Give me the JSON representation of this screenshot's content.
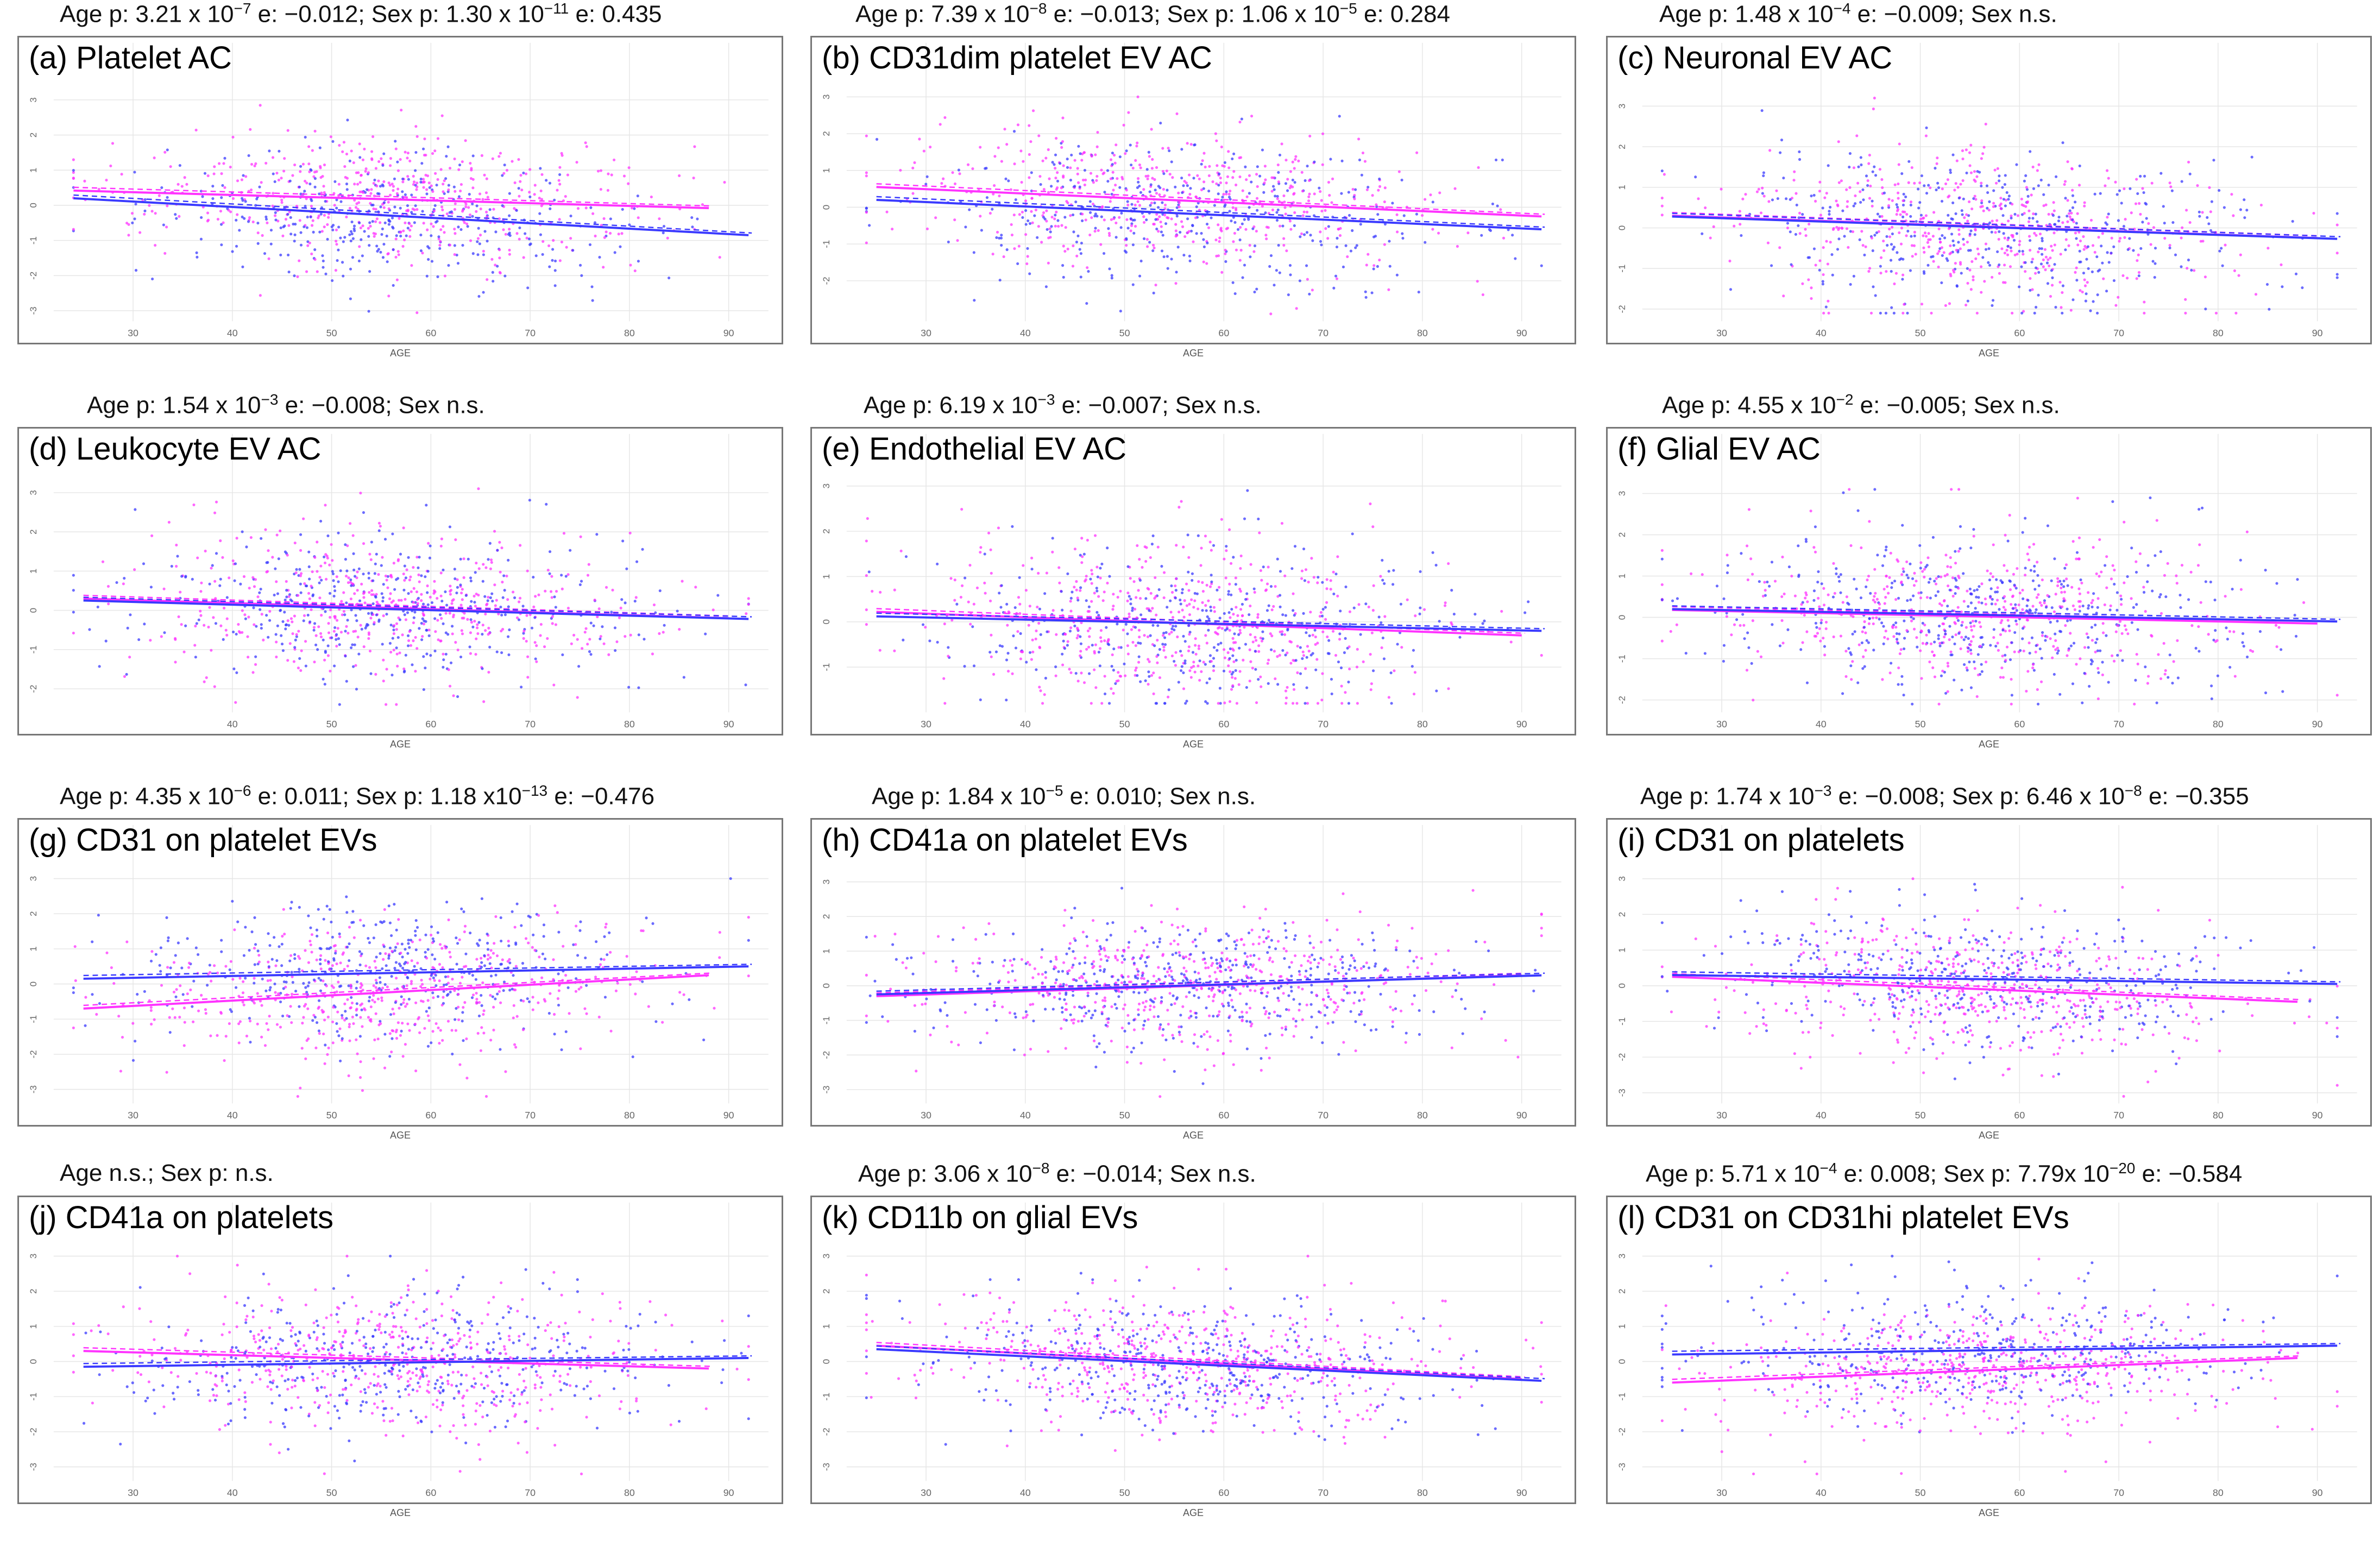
{
  "colors": {
    "female": "#ff33ff",
    "male": "#3a3aff",
    "grid": "#e6e6e6",
    "frame": "#777777"
  },
  "chart_data": [
    {
      "type": "scatter",
      "panel": "(a) Platelet AC",
      "header": "Age p: 3.21 x 10^-7 e: −0.012; Sex p: 1.30 x 10^-11 e: 0.435",
      "xlabel": "AGE",
      "xlim": [
        22,
        94
      ],
      "ylim": [
        -3.3,
        3.4
      ],
      "xticks": [
        30,
        40,
        50,
        60,
        70,
        80,
        90
      ],
      "yticks": [
        -3,
        -2,
        -1,
        0,
        1,
        2,
        3
      ],
      "lines": [
        {
          "sex": "female",
          "x": [
            24,
            88
          ],
          "y": [
            0.42,
            -0.08
          ]
        },
        {
          "sex": "male",
          "x": [
            24,
            92
          ],
          "y": [
            0.2,
            -0.85
          ]
        }
      ]
    },
    {
      "type": "scatter",
      "panel": "(b) CD31dim platelet EV AC",
      "header": "Age p: 7.39 x 10^-8 e: −0.013; Sex p: 1.06 x 10^-5 e: 0.284",
      "xlabel": "AGE",
      "xlim": [
        22,
        94
      ],
      "ylim": [
        -3.1,
        3.3
      ],
      "xticks": [
        30,
        40,
        50,
        60,
        70,
        80,
        90
      ],
      "yticks": [
        -2,
        -1,
        0,
        1,
        2,
        3
      ],
      "lines": [
        {
          "sex": "female",
          "x": [
            25,
            92
          ],
          "y": [
            0.55,
            -0.25
          ]
        },
        {
          "sex": "male",
          "x": [
            25,
            92
          ],
          "y": [
            0.2,
            -0.6
          ]
        }
      ]
    },
    {
      "type": "scatter",
      "panel": "(c) Neuronal EV AC",
      "header": "Age p: 1.48 x 10^-4 e: −0.009; Sex n.s.",
      "xlabel": "AGE",
      "xlim": [
        22,
        94
      ],
      "ylim": [
        -2.3,
        3.5
      ],
      "xticks": [
        30,
        40,
        50,
        60,
        70,
        80,
        90
      ],
      "yticks": [
        -2,
        -1,
        0,
        1,
        2,
        3
      ],
      "lines": [
        {
          "sex": "female",
          "x": [
            25,
            90
          ],
          "y": [
            0.3,
            -0.25
          ]
        },
        {
          "sex": "male",
          "x": [
            25,
            92
          ],
          "y": [
            0.28,
            -0.27
          ]
        }
      ]
    },
    {
      "type": "scatter",
      "panel": "(d) Leukocyte EV AC",
      "header": "Age p: 1.54 x 10^-3 e: −0.008; Sex n.s.",
      "xlabel": "AGE",
      "xlim": [
        22,
        94
      ],
      "ylim": [
        -2.6,
        3.4
      ],
      "xticks": [
        40,
        50,
        60,
        70,
        80,
        90
      ],
      "yticks": [
        -2,
        -1,
        0,
        1,
        2,
        3
      ],
      "lines": [
        {
          "sex": "female",
          "x": [
            25,
            90
          ],
          "y": [
            0.3,
            -0.2
          ]
        },
        {
          "sex": "male",
          "x": [
            25,
            92
          ],
          "y": [
            0.25,
            -0.22
          ]
        }
      ]
    },
    {
      "type": "scatter",
      "panel": "(e) Endothelial EV AC",
      "header": "Age p: 6.19 x 10^-3 e: −0.007; Sex n.s.",
      "xlabel": "AGE",
      "xlim": [
        22,
        94
      ],
      "ylim": [
        -2.0,
        3.2
      ],
      "xticks": [
        30,
        40,
        50,
        60,
        70,
        80,
        90
      ],
      "yticks": [
        -1,
        0,
        1,
        2,
        3
      ],
      "lines": [
        {
          "sex": "female",
          "x": [
            25,
            90
          ],
          "y": [
            0.22,
            -0.3
          ]
        },
        {
          "sex": "male",
          "x": [
            25,
            92
          ],
          "y": [
            0.12,
            -0.2
          ]
        }
      ]
    },
    {
      "type": "scatter",
      "panel": "(f) Glial EV AC",
      "header": "Age p: 4.55 x 10^-2 e: −0.005; Sex n.s.",
      "xlabel": "AGE",
      "xlim": [
        22,
        94
      ],
      "ylim": [
        -2.3,
        3.4
      ],
      "xticks": [
        30,
        40,
        50,
        60,
        70,
        80,
        90
      ],
      "yticks": [
        -2,
        -1,
        0,
        1,
        2,
        3
      ],
      "lines": [
        {
          "sex": "female",
          "x": [
            25,
            90
          ],
          "y": [
            0.18,
            -0.15
          ]
        },
        {
          "sex": "male",
          "x": [
            25,
            92
          ],
          "y": [
            0.2,
            -0.1
          ]
        }
      ]
    },
    {
      "type": "scatter",
      "panel": "(g) CD31 on platelet EVs",
      "header": "Age p: 4.35 x 10^-6 e: 0.011; Sex p: 1.18 x10^-13 e: −0.476",
      "xlabel": "AGE",
      "xlim": [
        22,
        94
      ],
      "ylim": [
        -3.4,
        3.3
      ],
      "xticks": [
        30,
        40,
        50,
        60,
        70,
        80,
        90
      ],
      "yticks": [
        -3,
        -2,
        -1,
        0,
        1,
        2,
        3
      ],
      "lines": [
        {
          "sex": "female",
          "x": [
            25,
            88
          ],
          "y": [
            -0.7,
            0.25
          ]
        },
        {
          "sex": "male",
          "x": [
            25,
            92
          ],
          "y": [
            0.15,
            0.5
          ]
        }
      ]
    },
    {
      "type": "scatter",
      "panel": "(h) CD41a on platelet EVs",
      "header": "Age p: 1.84 x 10^-5 e: 0.010; Sex n.s.",
      "xlabel": "AGE",
      "xlim": [
        22,
        94
      ],
      "ylim": [
        -3.4,
        3.4
      ],
      "xticks": [
        30,
        40,
        50,
        60,
        70,
        80,
        90
      ],
      "yticks": [
        -3,
        -2,
        -1,
        0,
        1,
        2,
        3
      ],
      "lines": [
        {
          "sex": "female",
          "x": [
            25,
            90
          ],
          "y": [
            -0.3,
            0.3
          ]
        },
        {
          "sex": "male",
          "x": [
            25,
            92
          ],
          "y": [
            -0.25,
            0.3
          ]
        }
      ]
    },
    {
      "type": "scatter",
      "panel": "(i) CD31 on platelets",
      "header": "Age p: 1.74 x 10^-3 e: −0.008; Sex p: 6.46 x 10^-8 e: −0.355",
      "xlabel": "AGE",
      "xlim": [
        22,
        94
      ],
      "ylim": [
        -3.3,
        3.3
      ],
      "xticks": [
        30,
        40,
        50,
        60,
        70,
        80,
        90
      ],
      "yticks": [
        -3,
        -2,
        -1,
        0,
        1,
        2,
        3
      ],
      "lines": [
        {
          "sex": "female",
          "x": [
            25,
            88
          ],
          "y": [
            0.25,
            -0.45
          ]
        },
        {
          "sex": "male",
          "x": [
            25,
            92
          ],
          "y": [
            0.3,
            0.05
          ]
        }
      ]
    },
    {
      "type": "scatter",
      "panel": "(j) CD41a on platelets",
      "header": "Age n.s.; Sex p: n.s.",
      "xlabel": "AGE",
      "xlim": [
        22,
        94
      ],
      "ylim": [
        -3.4,
        3.3
      ],
      "xticks": [
        30,
        40,
        50,
        60,
        70,
        80,
        90
      ],
      "yticks": [
        -3,
        -2,
        -1,
        0,
        1,
        2,
        3
      ],
      "lines": [
        {
          "sex": "female",
          "x": [
            25,
            88
          ],
          "y": [
            0.3,
            -0.2
          ]
        },
        {
          "sex": "male",
          "x": [
            25,
            92
          ],
          "y": [
            -0.15,
            0.1
          ]
        }
      ]
    },
    {
      "type": "scatter",
      "panel": "(k) CD11b on glial EVs",
      "header": "Age p: 3.06 x 10^-8 e: −0.014; Sex n.s.",
      "xlabel": "AGE",
      "xlim": [
        22,
        94
      ],
      "ylim": [
        -3.4,
        3.3
      ],
      "xticks": [
        30,
        40,
        50,
        60,
        70,
        80,
        90
      ],
      "yticks": [
        -3,
        -2,
        -1,
        0,
        1,
        2,
        3
      ],
      "lines": [
        {
          "sex": "female",
          "x": [
            25,
            90
          ],
          "y": [
            0.45,
            -0.5
          ]
        },
        {
          "sex": "male",
          "x": [
            25,
            92
          ],
          "y": [
            0.35,
            -0.55
          ]
        }
      ]
    },
    {
      "type": "scatter",
      "panel": "(l) CD31 on CD31hi platelet EVs",
      "header": "Age p: 5.71 x 10^-4 e: 0.008; Sex p: 7.79x 10^-20 e: −0.584",
      "xlabel": "AGE",
      "xlim": [
        22,
        94
      ],
      "ylim": [
        -3.4,
        3.3
      ],
      "xticks": [
        30,
        40,
        50,
        60,
        70,
        80,
        90
      ],
      "yticks": [
        -3,
        -2,
        -1,
        0,
        1,
        2,
        3
      ],
      "lines": [
        {
          "sex": "female",
          "x": [
            25,
            88
          ],
          "y": [
            -0.6,
            0.1
          ]
        },
        {
          "sex": "male",
          "x": [
            25,
            92
          ],
          "y": [
            0.2,
            0.45
          ]
        }
      ]
    }
  ]
}
